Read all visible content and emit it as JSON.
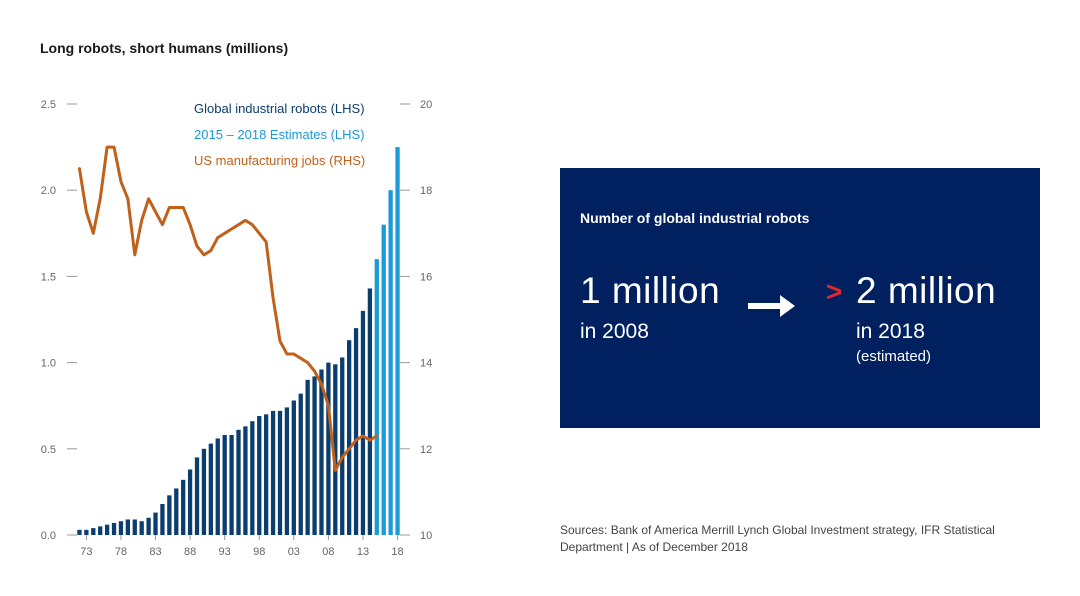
{
  "chart_data": {
    "type": "bar",
    "title": "Long robots, short humans (millions)",
    "x_years": [
      1972,
      1973,
      1974,
      1975,
      1976,
      1977,
      1978,
      1979,
      1980,
      1981,
      1982,
      1983,
      1984,
      1985,
      1986,
      1987,
      1988,
      1989,
      1990,
      1991,
      1992,
      1993,
      1994,
      1995,
      1996,
      1997,
      1998,
      1999,
      2000,
      2001,
      2002,
      2003,
      2004,
      2005,
      2006,
      2007,
      2008,
      2009,
      2010,
      2011,
      2012,
      2013,
      2014,
      2015,
      2016,
      2017,
      2018
    ],
    "x_tick_labels": [
      "73",
      "78",
      "83",
      "88",
      "93",
      "98",
      "03",
      "08",
      "13",
      "18"
    ],
    "x_tick_years": [
      1973,
      1978,
      1983,
      1988,
      1993,
      1998,
      2003,
      2008,
      2013,
      2018
    ],
    "left_axis": {
      "ticks": [
        "0.0",
        "0.5",
        "1.0",
        "1.5",
        "2.0",
        "2.5"
      ],
      "ylim": [
        0,
        2.5
      ]
    },
    "right_axis": {
      "ticks": [
        "10",
        "12",
        "14",
        "16",
        "18",
        "20"
      ],
      "ylim": [
        10,
        20
      ]
    },
    "series": [
      {
        "name": "Global industrial robots (LHS)",
        "type": "bar",
        "axis": "left",
        "color": "#0b3e6f",
        "x": [
          1972,
          1973,
          1974,
          1975,
          1976,
          1977,
          1978,
          1979,
          1980,
          1981,
          1982,
          1983,
          1984,
          1985,
          1986,
          1987,
          1988,
          1989,
          1990,
          1991,
          1992,
          1993,
          1994,
          1995,
          1996,
          1997,
          1998,
          1999,
          2000,
          2001,
          2002,
          2003,
          2004,
          2005,
          2006,
          2007,
          2008,
          2009,
          2010,
          2011,
          2012,
          2013,
          2014
        ],
        "values": [
          0.03,
          0.03,
          0.04,
          0.05,
          0.06,
          0.07,
          0.08,
          0.09,
          0.09,
          0.08,
          0.1,
          0.13,
          0.18,
          0.23,
          0.27,
          0.32,
          0.38,
          0.45,
          0.5,
          0.53,
          0.56,
          0.58,
          0.58,
          0.61,
          0.63,
          0.66,
          0.69,
          0.7,
          0.72,
          0.72,
          0.74,
          0.78,
          0.82,
          0.9,
          0.92,
          0.96,
          1.0,
          0.99,
          1.03,
          1.13,
          1.2,
          1.3,
          1.43
        ]
      },
      {
        "name": "2015 – 2018 Estimates (LHS)",
        "type": "bar",
        "axis": "left",
        "color": "#1a9ad6",
        "x": [
          2015,
          2016,
          2017,
          2018
        ],
        "values": [
          1.6,
          1.8,
          2.0,
          2.25
        ]
      },
      {
        "name": "US manufacturing jobs (RHS)",
        "type": "line",
        "axis": "right",
        "color": "#c0601b",
        "x": [
          1972,
          1973,
          1974,
          1975,
          1976,
          1977,
          1978,
          1979,
          1980,
          1981,
          1982,
          1983,
          1984,
          1985,
          1986,
          1987,
          1988,
          1989,
          1990,
          1991,
          1992,
          1993,
          1994,
          1995,
          1996,
          1997,
          1998,
          1999,
          2000,
          2001,
          2002,
          2003,
          2004,
          2005,
          2006,
          2007,
          2008,
          2009,
          2010,
          2011,
          2012,
          2013,
          2014,
          2015
        ],
        "values": [
          18.5,
          17.5,
          17.0,
          17.8,
          19.0,
          19.0,
          18.2,
          17.8,
          16.5,
          17.3,
          17.8,
          17.5,
          17.2,
          17.6,
          17.6,
          17.6,
          17.2,
          16.7,
          16.5,
          16.6,
          16.9,
          17.0,
          17.1,
          17.2,
          17.3,
          17.2,
          17.0,
          16.8,
          15.5,
          14.5,
          14.2,
          14.2,
          14.1,
          14.0,
          13.8,
          13.5,
          13.0,
          11.5,
          11.8,
          12.0,
          12.2,
          12.3,
          12.2,
          12.3
        ]
      }
    ]
  },
  "info": {
    "heading": "Number of global industrial robots",
    "left_value": "1 million",
    "left_year": "in 2008",
    "right_value": "2 million",
    "right_year": "in 2018",
    "right_note": "(estimated)",
    "chevron": ">",
    "box_color": "#002060",
    "chevron_color": "#e0282e"
  },
  "sources": "Sources: Bank of America Merrill Lynch Global Investment strategy, IFR Statistical Department | As of December 2018"
}
